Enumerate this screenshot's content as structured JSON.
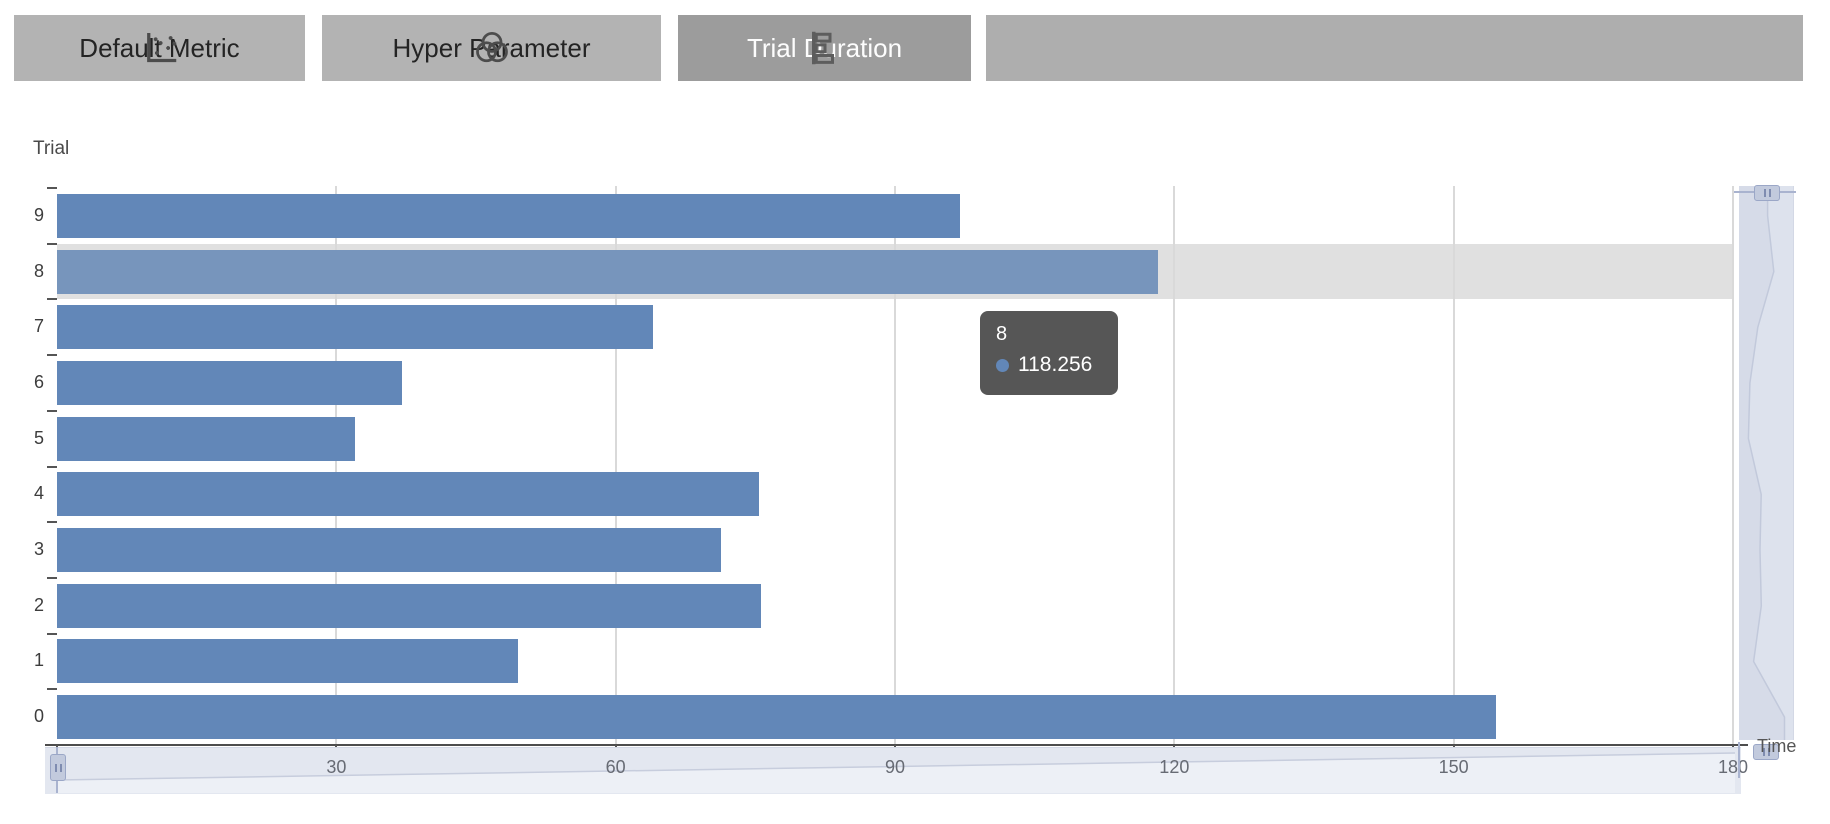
{
  "tabs": [
    {
      "label": "Default Metric",
      "icon": "scatter-plot-icon",
      "active": false
    },
    {
      "label": "Hyper Parameter",
      "icon": "venn-diagram-icon",
      "active": false
    },
    {
      "label": "Trial Duration",
      "icon": "horizontal-bar-chart-icon",
      "active": true
    }
  ],
  "chart_data": {
    "type": "bar",
    "orientation": "horizontal",
    "ylabel": "Trial",
    "xlabel": "Time",
    "categories": [
      9,
      8,
      7,
      6,
      5,
      4,
      3,
      2,
      1,
      0
    ],
    "values": [
      97,
      118.256,
      64,
      37,
      32,
      75.4,
      71.3,
      75.6,
      49.5,
      154.5
    ],
    "xlim": [
      0,
      180
    ],
    "x_ticks": [
      0,
      30,
      60,
      90,
      120,
      150,
      180
    ],
    "grid": true,
    "legend": "none",
    "highlighted_category": 8,
    "colors": {
      "bar": "#6287b8",
      "bar_highlight": "#7795bc",
      "highlight_row": "#e0e0e0",
      "slider_band": "#e3e7f0",
      "slider_handle": "#a9b3cf"
    }
  },
  "tooltip": {
    "title": "8",
    "value": "118.256",
    "marker_color": "#6287b8"
  }
}
